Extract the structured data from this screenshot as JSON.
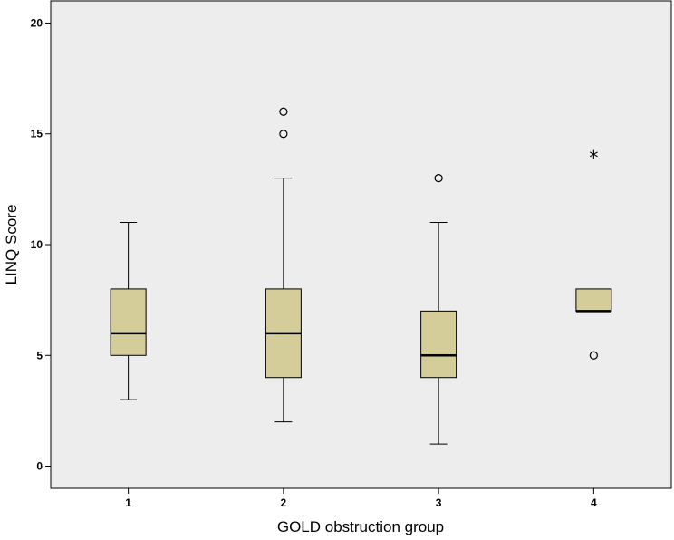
{
  "chart_data": {
    "type": "box",
    "title": "",
    "xlabel": "GOLD obstruction group",
    "ylabel": "LINQ Score",
    "ylim": [
      -1,
      21
    ],
    "yticks": [
      0,
      5,
      10,
      15,
      20
    ],
    "grid": false,
    "background": "#ededed",
    "box_color": "#d4cc99",
    "categories": [
      "1",
      "2",
      "3",
      "4"
    ],
    "boxes": [
      {
        "category": "1",
        "whisker_low": 3,
        "q1": 5,
        "median": 6,
        "q3": 8,
        "whisker_high": 11,
        "outliers": [],
        "extremes": []
      },
      {
        "category": "2",
        "whisker_low": 2,
        "q1": 4,
        "median": 6,
        "q3": 8,
        "whisker_high": 13,
        "outliers": [
          15,
          16
        ],
        "extremes": []
      },
      {
        "category": "3",
        "whisker_low": 1,
        "q1": 4,
        "median": 5,
        "q3": 7,
        "whisker_high": 11,
        "outliers": [
          13
        ],
        "extremes": []
      },
      {
        "category": "4",
        "whisker_low": 7,
        "q1": 7,
        "median": 7,
        "q3": 8,
        "whisker_high": 8,
        "outliers": [
          5
        ],
        "extremes": [
          14
        ]
      }
    ]
  }
}
